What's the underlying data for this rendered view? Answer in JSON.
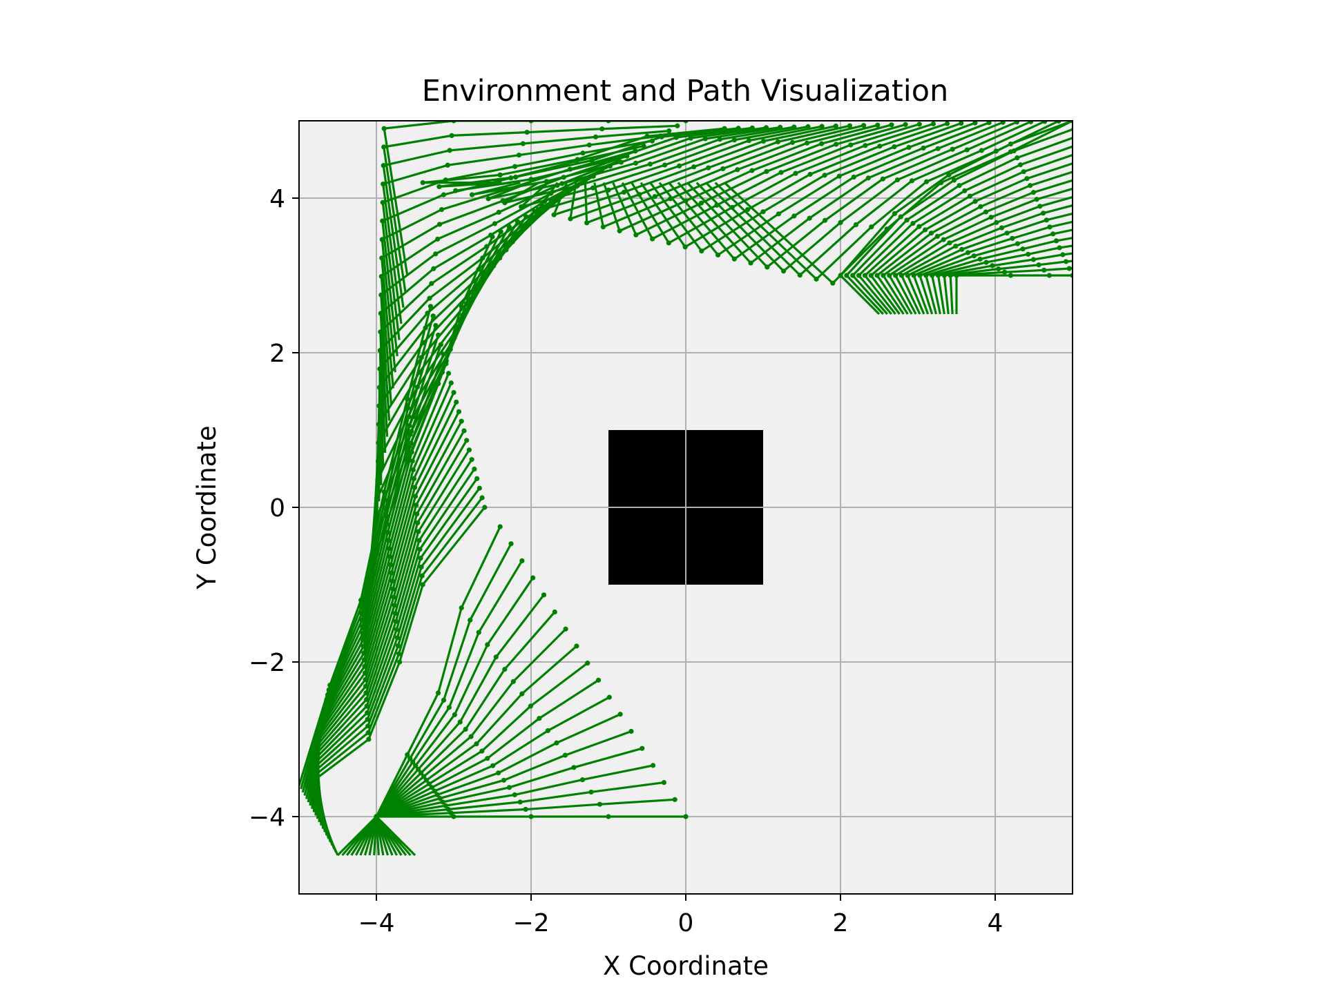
{
  "chart_data": {
    "type": "line",
    "title": "Environment and Path Visualization",
    "xlabel": "X Coordinate",
    "ylabel": "Y Coordinate",
    "xlim": [
      -5,
      5
    ],
    "ylim": [
      -5,
      5
    ],
    "xticks": [
      -4,
      -2,
      0,
      2,
      4
    ],
    "yticks": [
      -4,
      -2,
      0,
      2,
      4
    ],
    "xtick_labels": [
      "−4",
      "−2",
      "0",
      "2",
      "4"
    ],
    "ytick_labels": [
      "−4",
      "−2",
      "0",
      "2",
      "4"
    ],
    "grid": true,
    "background_color": "#f0f0f0",
    "path_color": "#008000",
    "obstacle_color": "#000000",
    "obstacles": [
      {
        "x": [
          -1,
          1
        ],
        "y": [
          -1,
          1
        ]
      }
    ],
    "arm_chains": {
      "description_of_motion": "sequence of 3-link arm configurations",
      "phases": [
        {
          "base": [
            [
              -3.5,
              -4.5
            ],
            [
              -4.5,
              -4.5
            ]
          ],
          "frames": 18,
          "start": [
            [
              -4,
              -4
            ],
            [
              -3,
              -4
            ],
            [
              -2,
              -4
            ],
            [
              -1,
              -4
            ],
            [
              0,
              -4
            ]
          ],
          "end": [
            [
              -4,
              -4
            ],
            [
              -3.6,
              -3.2
            ],
            [
              -3.2,
              -2.4
            ],
            [
              -2.9,
              -1.3
            ],
            [
              -2.4,
              -0.25
            ]
          ]
        },
        {
          "base": [
            [
              -4.5,
              -4.5
            ],
            [
              -5,
              -3.6
            ]
          ],
          "frames": 22,
          "start": [
            [
              -4.9,
              -3.6
            ],
            [
              -4.1,
              -3.0
            ],
            [
              -3.7,
              -2.0
            ],
            [
              -3.4,
              -1.0
            ],
            [
              -2.6,
              0
            ]
          ],
          "end": [
            [
              -4.6,
              -2.3
            ],
            [
              -4.2,
              -1.2
            ],
            [
              -3.9,
              0.2
            ],
            [
              -3.6,
              1.4
            ],
            [
              -3.3,
              2.6
            ]
          ]
        },
        {
          "base": [
            [
              -4.2,
              -1.8
            ],
            [
              -3.6,
              3.0
            ]
          ],
          "frames": 24,
          "start": [
            [
              -4.0,
              -0.6
            ],
            [
              -3.6,
              0.6
            ],
            [
              -3.2,
              1.6
            ],
            [
              -2.9,
              2.6
            ],
            [
              -2.5,
              3.5
            ]
          ],
          "end": [
            [
              -3.9,
              4.9
            ],
            [
              -3.0,
              5.0
            ],
            [
              -2.0,
              5.0
            ],
            [
              -1.0,
              5.0
            ],
            [
              0.0,
              5.0
            ]
          ]
        },
        {
          "base": [
            [
              -2.5,
              4.2
            ],
            [
              0.5,
              4.2
            ]
          ],
          "frames": 26,
          "start": [
            [
              -3.4,
              4.2
            ],
            [
              -2.4,
              4.3
            ],
            [
              -1.4,
              4.5
            ],
            [
              -0.5,
              4.8
            ],
            [
              0.5,
              4.9
            ]
          ],
          "end": [
            [
              1.9,
              2.9
            ],
            [
              2.6,
              3.6
            ],
            [
              3.3,
              4.2
            ],
            [
              4.2,
              4.6
            ],
            [
              5.0,
              5.0
            ]
          ]
        },
        {
          "base": [
            [
              2.5,
              2.5
            ],
            [
              3.5,
              2.5
            ]
          ],
          "frames": 20,
          "start": [
            [
              2.0,
              3.0
            ],
            [
              2.7,
              3.8
            ],
            [
              3.4,
              4.3
            ],
            [
              4.2,
              4.7
            ],
            [
              5.0,
              5.0
            ]
          ],
          "end": [
            [
              3.5,
              3.0
            ],
            [
              4.2,
              3.0
            ],
            [
              4.7,
              3.0
            ],
            [
              5.0,
              3.0
            ],
            [
              5.3,
              3.0
            ]
          ]
        }
      ]
    }
  }
}
